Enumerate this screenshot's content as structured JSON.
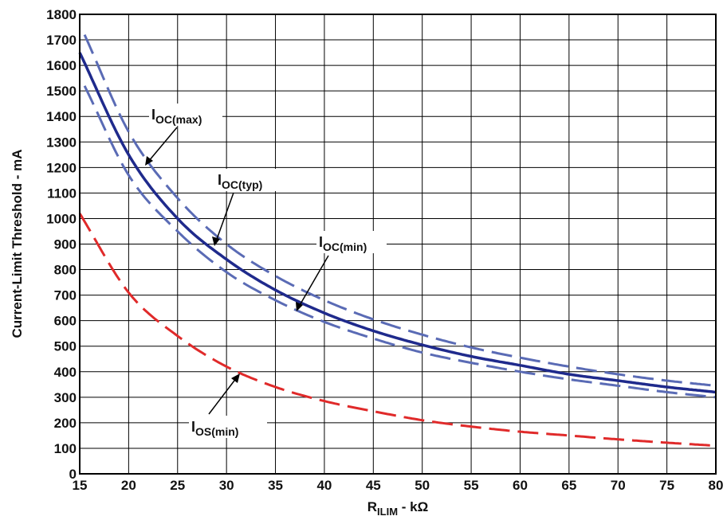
{
  "chart_data": {
    "type": "line",
    "xlabel": {
      "main": "R",
      "sub": "ILIM",
      "suffix": " - kΩ"
    },
    "ylabel": "Current-Limit Threshold - mA",
    "xlim": [
      15,
      80
    ],
    "ylim": [
      0,
      1800
    ],
    "x_ticks": [
      15,
      20,
      25,
      30,
      35,
      40,
      45,
      50,
      55,
      60,
      65,
      70,
      75,
      80
    ],
    "y_ticks": [
      0,
      100,
      200,
      300,
      400,
      500,
      600,
      700,
      800,
      900,
      1000,
      1100,
      1200,
      1300,
      1400,
      1500,
      1600,
      1700,
      1800
    ],
    "grid": true,
    "series": [
      {
        "name": "IOC(max)",
        "label_main": "I",
        "label_sub": "OC(max)",
        "color": "#5a6bb5",
        "style": "dashed",
        "x": [
          15.5,
          20,
          25,
          30,
          35,
          40,
          45,
          50,
          55,
          60,
          65,
          70,
          75,
          80
        ],
        "y": [
          1720,
          1340,
          1080,
          900,
          775,
          680,
          605,
          545,
          495,
          455,
          420,
          390,
          365,
          345
        ]
      },
      {
        "name": "IOC(typ)",
        "label_main": "I",
        "label_sub": "OC(typ)",
        "color": "#1f2a8c",
        "style": "solid",
        "x": [
          15,
          20,
          25,
          30,
          35,
          40,
          45,
          50,
          55,
          60,
          65,
          70,
          75,
          80
        ],
        "y": [
          1650,
          1250,
          1000,
          840,
          720,
          630,
          560,
          505,
          460,
          425,
          390,
          365,
          340,
          320
        ]
      },
      {
        "name": "IOC(min)",
        "label_main": "I",
        "label_sub": "OC(min)",
        "color": "#5a6bb5",
        "style": "dashed",
        "x": [
          15.5,
          20,
          25,
          30,
          35,
          40,
          45,
          50,
          55,
          60,
          65,
          70,
          75,
          80
        ],
        "y": [
          1520,
          1170,
          950,
          790,
          680,
          595,
          530,
          475,
          435,
          400,
          370,
          345,
          320,
          300
        ]
      },
      {
        "name": "IOS(min)",
        "label_main": "I",
        "label_sub": "OS(min)",
        "color": "#e02a2a",
        "style": "dashed",
        "x": [
          15,
          20,
          25,
          30,
          35,
          40,
          45,
          50,
          55,
          60,
          65,
          70,
          75,
          80
        ],
        "y": [
          1020,
          710,
          540,
          420,
          340,
          285,
          245,
          210,
          185,
          165,
          150,
          135,
          122,
          110
        ]
      }
    ]
  }
}
